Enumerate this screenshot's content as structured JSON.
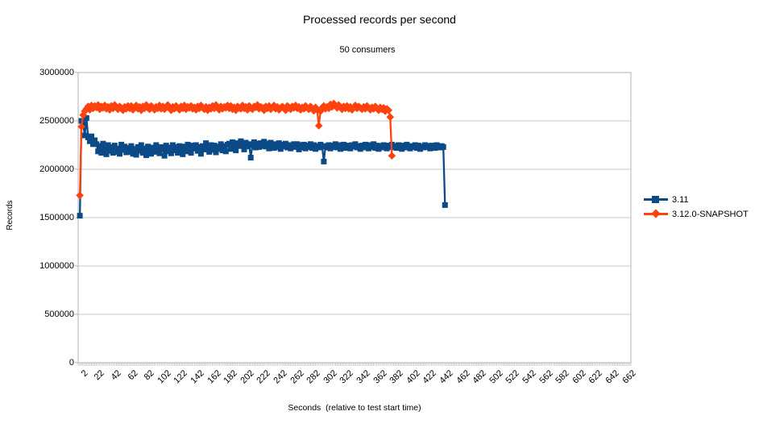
{
  "chart_data": {
    "type": "line",
    "title": "Processed records per second",
    "subtitle": "50 consumers",
    "xlabel": "Seconds  (relative to test start time)",
    "ylabel": "Records",
    "x_range": [
      0,
      666
    ],
    "y_range": [
      0,
      3000000
    ],
    "y_ticks": [
      0,
      500000,
      1000000,
      1500000,
      2000000,
      2500000,
      3000000
    ],
    "x_tick_values": [
      2,
      22,
      42,
      62,
      82,
      102,
      122,
      142,
      162,
      182,
      202,
      222,
      242,
      262,
      282,
      302,
      322,
      342,
      362,
      382,
      402,
      422,
      442,
      462,
      482,
      502,
      522,
      542,
      562,
      582,
      602,
      622,
      642,
      662
    ],
    "x_minor_tick_step": 2,
    "grid": "horizontal",
    "legend_position": "right",
    "colors": {
      "series_blue": "#0b4a86",
      "series_orange": "#ff420e",
      "gridline": "#c9c9c9",
      "axis": "#b3b3b3",
      "text": "#000000",
      "background": "#ffffff"
    },
    "series": [
      {
        "name": "3.11",
        "color": "#0b4a86",
        "marker": "square",
        "t_start": 2,
        "t_step": 2,
        "values": [
          1520000,
          2500000,
          2470000,
          2350000,
          2530000,
          2330000,
          2290000,
          2340000,
          2260000,
          2300000,
          2260000,
          2185000,
          2240000,
          2170000,
          2265000,
          2205000,
          2155000,
          2250000,
          2190000,
          2230000,
          2170000,
          2245000,
          2180000,
          2215000,
          2160000,
          2255000,
          2200000,
          2235000,
          2175000,
          2220000,
          2180000,
          2240000,
          2160000,
          2210000,
          2150000,
          2230000,
          2190000,
          2250000,
          2170000,
          2215000,
          2145000,
          2235000,
          2195000,
          2160000,
          2225000,
          2180000,
          2250000,
          2200000,
          2165000,
          2230000,
          2210000,
          2140000,
          2245000,
          2185000,
          2225000,
          2165000,
          2250000,
          2195000,
          2230000,
          2170000,
          2240000,
          2200000,
          2155000,
          2235000,
          2185000,
          2255000,
          2205000,
          2170000,
          2245000,
          2215000,
          2250000,
          2190000,
          2230000,
          2160000,
          2240000,
          2205000,
          2270000,
          2215000,
          2180000,
          2250000,
          2200000,
          2245000,
          2175000,
          2235000,
          2210000,
          2260000,
          2195000,
          2240000,
          2185000,
          2255000,
          2265000,
          2210000,
          2280000,
          2230000,
          2195000,
          2270000,
          2240000,
          2290000,
          2245000,
          2205000,
          2275000,
          2235000,
          2260000,
          2120000,
          2250000,
          2280000,
          2225000,
          2265000,
          2230000,
          2270000,
          2240000,
          2285000,
          2235000,
          2265000,
          2215000,
          2275000,
          2245000,
          2220000,
          2260000,
          2230000,
          2270000,
          2210000,
          2255000,
          2235000,
          2265000,
          2225000,
          2250000,
          2215000,
          2245000,
          2260000,
          2230000,
          2260000,
          2205000,
          2250000,
          2225000,
          2255000,
          2215000,
          2245000,
          2230000,
          2260000,
          2220000,
          2250000,
          2210000,
          2240000,
          2225000,
          2255000,
          2235000,
          2080000,
          2240000,
          2225000,
          2250000,
          2215000,
          2245000,
          2230000,
          2260000,
          2225000,
          2250000,
          2210000,
          2240000,
          2255000,
          2220000,
          2245000,
          2230000,
          2215000,
          2250000,
          2235000,
          2260000,
          2225000,
          2240000,
          2210000,
          2245000,
          2225000,
          2255000,
          2235000,
          2215000,
          2250000,
          2230000,
          2260000,
          2220000,
          2245000,
          2210000,
          2240000,
          2225000,
          2250000,
          2235000,
          2215000,
          2245000,
          2230000,
          2255000,
          2225000,
          2240000,
          2220000,
          2250000,
          2230000,
          2210000,
          2245000,
          2225000,
          2255000,
          2235000,
          2215000,
          2240000,
          2230000,
          2250000,
          2220000,
          2245000,
          2210000,
          2235000,
          2225000,
          2250000,
          2230000,
          2240000,
          2215000,
          2245000,
          2230000,
          2220000,
          2250000,
          2235000,
          2225000,
          2240000,
          2230000,
          1630000
        ]
      },
      {
        "name": "3.12.0-SNAPSHOT",
        "color": "#ff420e",
        "marker": "diamond",
        "t_start": 2,
        "t_step": 2,
        "values": [
          1730000,
          2440000,
          2560000,
          2600000,
          2625000,
          2650000,
          2615000,
          2660000,
          2630000,
          2655000,
          2640000,
          2665000,
          2620000,
          2650000,
          2635000,
          2660000,
          2625000,
          2645000,
          2615000,
          2655000,
          2630000,
          2665000,
          2640000,
          2620000,
          2650000,
          2635000,
          2610000,
          2645000,
          2625000,
          2655000,
          2630000,
          2655000,
          2615000,
          2640000,
          2660000,
          2625000,
          2645000,
          2610000,
          2650000,
          2630000,
          2665000,
          2635000,
          2620000,
          2655000,
          2640000,
          2615000,
          2645000,
          2630000,
          2660000,
          2625000,
          2650000,
          2620000,
          2640000,
          2665000,
          2630000,
          2610000,
          2645000,
          2625000,
          2655000,
          2635000,
          2615000,
          2650000,
          2630000,
          2660000,
          2620000,
          2645000,
          2635000,
          2655000,
          2625000,
          2640000,
          2615000,
          2650000,
          2630000,
          2660000,
          2635000,
          2620000,
          2645000,
          2610000,
          2640000,
          2625000,
          2655000,
          2630000,
          2665000,
          2640000,
          2615000,
          2650000,
          2625000,
          2645000,
          2635000,
          2660000,
          2630000,
          2655000,
          2620000,
          2640000,
          2610000,
          2650000,
          2635000,
          2625000,
          2660000,
          2630000,
          2645000,
          2615000,
          2655000,
          2635000,
          2620000,
          2650000,
          2640000,
          2665000,
          2625000,
          2645000,
          2635000,
          2610000,
          2650000,
          2630000,
          2655000,
          2620000,
          2640000,
          2660000,
          2625000,
          2645000,
          2615000,
          2635000,
          2650000,
          2630000,
          2610000,
          2655000,
          2640000,
          2620000,
          2650000,
          2635000,
          2660000,
          2630000,
          2645000,
          2615000,
          2640000,
          2625000,
          2655000,
          2635000,
          2620000,
          2650000,
          2630000,
          2605000,
          2640000,
          2615000,
          2450000,
          2600000,
          2635000,
          2655000,
          2625000,
          2645000,
          2630000,
          2670000,
          2645000,
          2680000,
          2655000,
          2635000,
          2665000,
          2640000,
          2620000,
          2650000,
          2630000,
          2655000,
          2625000,
          2645000,
          2615000,
          2640000,
          2660000,
          2630000,
          2650000,
          2635000,
          2620000,
          2645000,
          2625000,
          2655000,
          2635000,
          2615000,
          2640000,
          2625000,
          2650000,
          2630000,
          2610000,
          2640000,
          2620000,
          2635000,
          2600000,
          2625000,
          2610000,
          2540000,
          2140000
        ]
      }
    ]
  }
}
